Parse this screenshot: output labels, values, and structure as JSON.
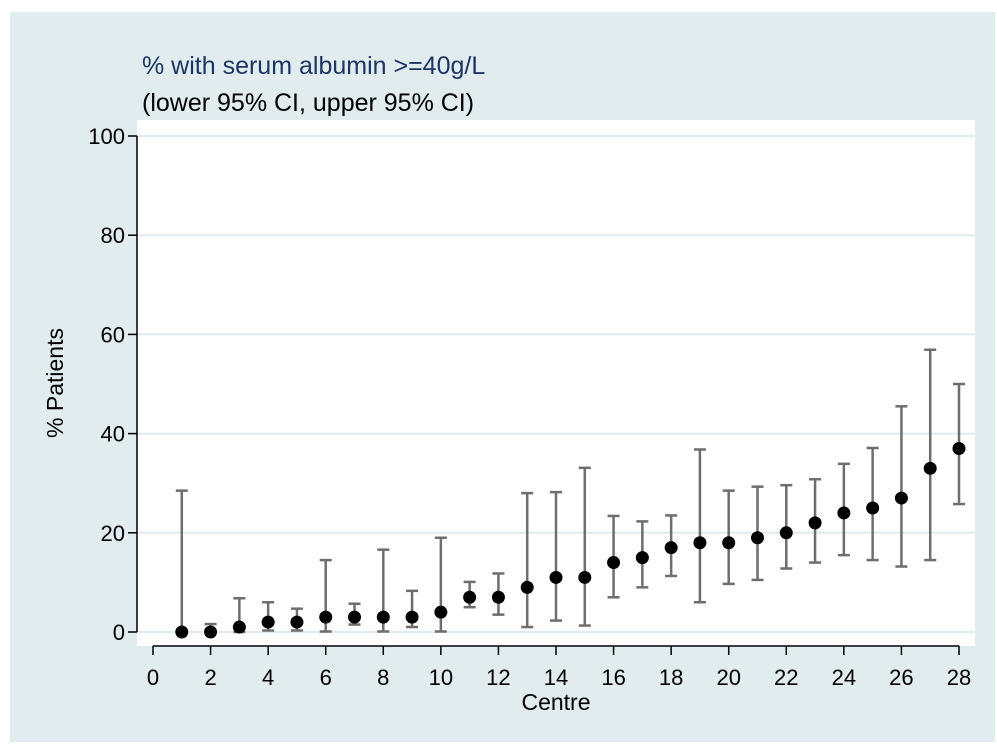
{
  "chart_data": {
    "type": "scatter",
    "title": "% with serum albumin >=40g/L",
    "subtitle": "(lower 95% CI, upper 95% CI)",
    "xlabel": "Centre",
    "ylabel": "% Patients",
    "xlim": [
      0,
      28
    ],
    "ylim": [
      0,
      100
    ],
    "xticks": [
      0,
      2,
      4,
      6,
      8,
      10,
      12,
      14,
      16,
      18,
      20,
      22,
      24,
      26,
      28
    ],
    "yticks": [
      0,
      20,
      40,
      60,
      80,
      100
    ],
    "grid": "horizontal",
    "series": [
      {
        "x": [
          1,
          2,
          3,
          4,
          5,
          6,
          7,
          8,
          9,
          10,
          11,
          12,
          13,
          14,
          15,
          16,
          17,
          18,
          19,
          20,
          21,
          22,
          23,
          24,
          25,
          26,
          27,
          28
        ],
        "y": [
          0,
          0,
          1,
          2,
          2,
          3,
          3,
          3,
          3,
          4,
          7,
          7,
          9,
          11,
          11,
          14,
          15,
          17,
          18,
          18,
          19,
          20,
          22,
          24,
          25,
          27,
          33,
          37
        ],
        "lower": [
          0,
          0,
          0,
          0.3,
          0.3,
          0.1,
          1.5,
          0.1,
          1,
          0.1,
          5,
          3.5,
          1,
          2.3,
          1.3,
          7,
          9,
          11.3,
          6,
          9.7,
          10.5,
          12.8,
          14,
          15.5,
          14.5,
          13.2,
          14.5,
          25.8
        ],
        "upper": [
          28.5,
          1.6,
          6.8,
          6,
          4.7,
          14.5,
          5.7,
          16.6,
          8.3,
          19,
          10.1,
          11.8,
          28,
          28.2,
          33.1,
          23.4,
          22.3,
          23.5,
          36.8,
          28.5,
          29.3,
          29.6,
          30.8,
          33.9,
          37.1,
          45.5,
          56.9,
          50
        ]
      }
    ],
    "colors": {
      "outer_background": "#e0ecee",
      "plot_background": "#ffffff",
      "title": "#1e3462",
      "text": "#000000",
      "grid": "#e2ecee",
      "marker": "#000000",
      "error_bar": "#6e6e6e"
    }
  }
}
